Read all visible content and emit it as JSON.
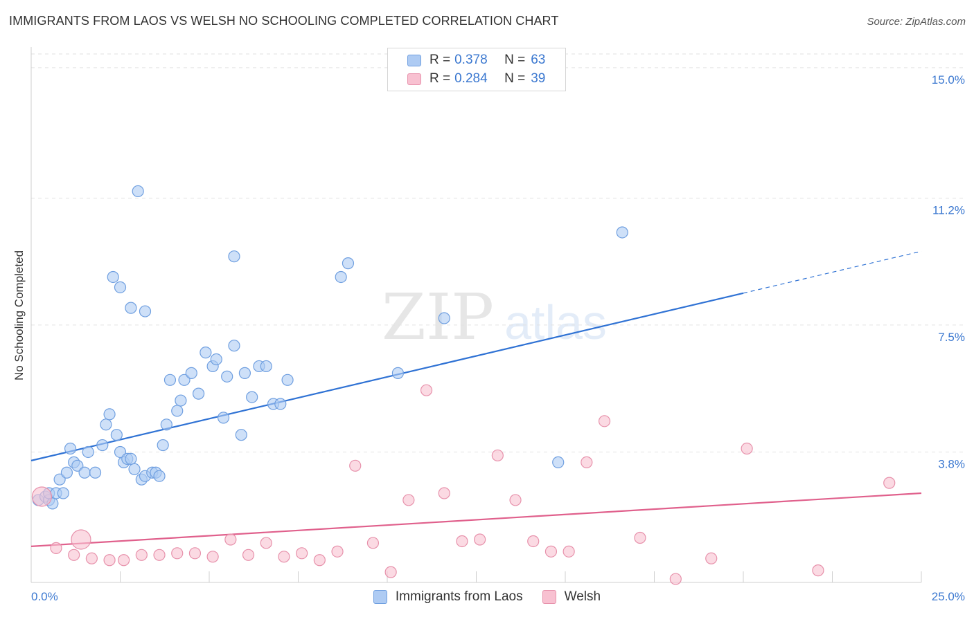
{
  "header": {
    "title": "IMMIGRANTS FROM LAOS VS WELSH NO SCHOOLING COMPLETED CORRELATION CHART",
    "source": "Source: ZipAtlas.com"
  },
  "watermark": {
    "zip": "ZIP",
    "atlas": "atlas"
  },
  "legend": {
    "series": [
      {
        "name": "Immigrants from Laos",
        "r_label": "R =",
        "r_value": "0.378",
        "n_label": "N =",
        "n_value": "63",
        "fill": "#aecbf3",
        "stroke": "#6f9fe0"
      },
      {
        "name": "Welsh",
        "r_label": "R =",
        "r_value": "0.284",
        "n_label": "N =",
        "n_value": "39",
        "fill": "#f8c1d1",
        "stroke": "#e791ab"
      }
    ]
  },
  "chart_data": {
    "type": "scatter",
    "title": "IMMIGRANTS FROM LAOS VS WELSH NO SCHOOLING COMPLETED CORRELATION CHART",
    "xlabel": "",
    "ylabel": "No Schooling Completed",
    "xlim": [
      0,
      25
    ],
    "ylim": [
      0,
      15.4
    ],
    "x_tick_labels": [
      "0.0%",
      "25.0%"
    ],
    "y_ticks": [
      3.8,
      7.5,
      11.2,
      15.0
    ],
    "y_tick_labels": [
      "3.8%",
      "7.5%",
      "11.2%",
      "15.0%"
    ],
    "grid": true,
    "series": [
      {
        "name": "Immigrants from Laos",
        "color": "#6f9fe0",
        "fill": "#aecbf3",
        "line_color": "#2f72d4",
        "trend": {
          "x0": 0.0,
          "y0": 3.55,
          "x1": 25.0,
          "y1": 9.65,
          "solid_until_x": 20.0
        },
        "points": [
          [
            0.2,
            2.4
          ],
          [
            0.4,
            2.5
          ],
          [
            0.5,
            2.4
          ],
          [
            0.6,
            2.3
          ],
          [
            0.5,
            2.6
          ],
          [
            0.7,
            2.6
          ],
          [
            0.8,
            3.0
          ],
          [
            0.9,
            2.6
          ],
          [
            1.0,
            3.2
          ],
          [
            1.1,
            3.9
          ],
          [
            1.2,
            3.5
          ],
          [
            1.3,
            3.4
          ],
          [
            1.5,
            3.2
          ],
          [
            1.6,
            3.8
          ],
          [
            1.8,
            3.2
          ],
          [
            2.0,
            4.0
          ],
          [
            2.1,
            4.6
          ],
          [
            2.2,
            4.9
          ],
          [
            2.4,
            4.3
          ],
          [
            2.5,
            3.8
          ],
          [
            2.6,
            3.5
          ],
          [
            2.7,
            3.6
          ],
          [
            2.8,
            3.6
          ],
          [
            2.9,
            3.3
          ],
          [
            3.1,
            3.0
          ],
          [
            3.2,
            3.1
          ],
          [
            3.4,
            3.2
          ],
          [
            3.5,
            3.2
          ],
          [
            3.6,
            3.1
          ],
          [
            3.7,
            4.0
          ],
          [
            3.8,
            4.6
          ],
          [
            3.9,
            5.9
          ],
          [
            4.1,
            5.0
          ],
          [
            4.2,
            5.3
          ],
          [
            4.3,
            5.9
          ],
          [
            4.5,
            6.1
          ],
          [
            4.7,
            5.5
          ],
          [
            4.9,
            6.7
          ],
          [
            5.1,
            6.3
          ],
          [
            5.2,
            6.5
          ],
          [
            5.4,
            4.8
          ],
          [
            5.5,
            6.0
          ],
          [
            5.7,
            6.9
          ],
          [
            5.9,
            4.3
          ],
          [
            6.0,
            6.1
          ],
          [
            6.2,
            5.4
          ],
          [
            6.4,
            6.3
          ],
          [
            6.6,
            6.3
          ],
          [
            6.8,
            5.2
          ],
          [
            7.0,
            5.2
          ],
          [
            7.2,
            5.9
          ],
          [
            2.3,
            8.9
          ],
          [
            2.5,
            8.6
          ],
          [
            2.8,
            8.0
          ],
          [
            3.2,
            7.9
          ],
          [
            3.0,
            11.4
          ],
          [
            5.7,
            9.5
          ],
          [
            8.7,
            8.9
          ],
          [
            8.9,
            9.3
          ],
          [
            10.3,
            6.1
          ],
          [
            11.6,
            7.7
          ],
          [
            14.8,
            3.5
          ],
          [
            16.6,
            10.2
          ]
        ]
      },
      {
        "name": "Welsh",
        "color": "#e791ab",
        "fill": "#f8c1d1",
        "line_color": "#e0608c",
        "trend": {
          "x0": 0.0,
          "y0": 1.05,
          "x1": 25.0,
          "y1": 2.6,
          "solid_until_x": 25.0
        },
        "points": [
          [
            0.3,
            2.5
          ],
          [
            0.7,
            1.0
          ],
          [
            1.2,
            0.8
          ],
          [
            1.7,
            0.7
          ],
          [
            2.2,
            0.65
          ],
          [
            2.6,
            0.65
          ],
          [
            3.1,
            0.8
          ],
          [
            3.6,
            0.8
          ],
          [
            4.1,
            0.85
          ],
          [
            4.6,
            0.85
          ],
          [
            5.1,
            0.75
          ],
          [
            5.6,
            1.25
          ],
          [
            6.1,
            0.8
          ],
          [
            6.6,
            1.15
          ],
          [
            7.1,
            0.75
          ],
          [
            7.6,
            0.85
          ],
          [
            8.1,
            0.65
          ],
          [
            8.6,
            0.9
          ],
          [
            9.1,
            3.4
          ],
          [
            9.6,
            1.15
          ],
          [
            10.1,
            0.3
          ],
          [
            10.6,
            2.4
          ],
          [
            11.1,
            5.6
          ],
          [
            11.6,
            2.6
          ],
          [
            12.1,
            1.2
          ],
          [
            12.6,
            1.25
          ],
          [
            13.1,
            3.7
          ],
          [
            13.6,
            2.4
          ],
          [
            14.1,
            1.2
          ],
          [
            14.6,
            0.9
          ],
          [
            15.1,
            0.9
          ],
          [
            15.6,
            3.5
          ],
          [
            16.1,
            4.7
          ],
          [
            17.1,
            1.3
          ],
          [
            18.1,
            0.1
          ],
          [
            19.1,
            0.7
          ],
          [
            20.1,
            3.9
          ],
          [
            22.1,
            0.35
          ],
          [
            24.1,
            2.9
          ]
        ]
      }
    ]
  }
}
